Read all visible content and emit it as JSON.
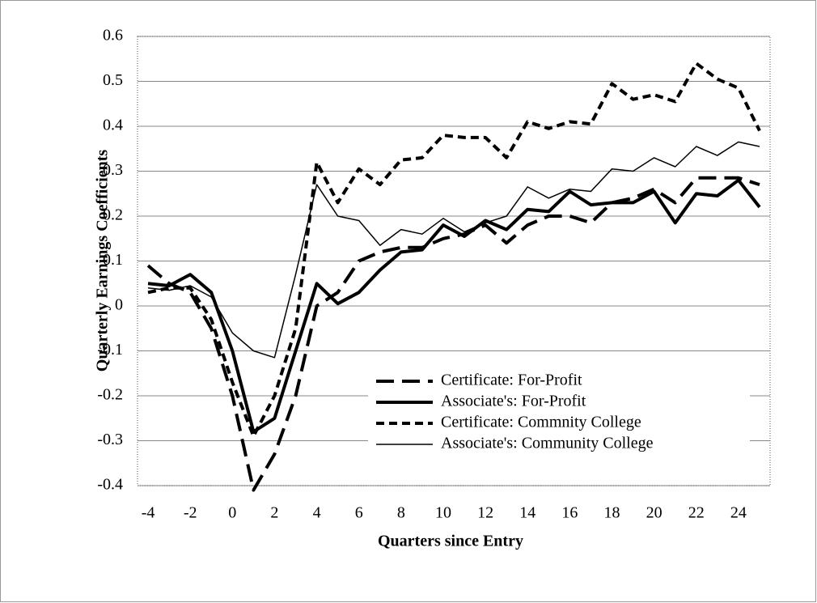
{
  "chart_data": {
    "type": "line",
    "xlabel": "Quarters since Entry",
    "ylabel": "Quarterly Earnings Coefficients",
    "categories": [
      "-4",
      null,
      "-2",
      null,
      "0",
      null,
      "2",
      null,
      "4",
      null,
      "6",
      null,
      "8",
      null,
      "10",
      null,
      "12",
      null,
      "14",
      null,
      "16",
      null,
      "18",
      null,
      "20",
      null,
      "22",
      null,
      "24",
      null
    ],
    "ylim": [
      -0.4,
      0.6
    ],
    "yticks": [
      -0.4,
      -0.3,
      -0.2,
      -0.1,
      0,
      0.1,
      0.2,
      0.3,
      0.4,
      0.5,
      0.6
    ],
    "grid": true,
    "legend": "lower right",
    "series": [
      {
        "name": "Certificate: For-Profit",
        "color": "#000000",
        "width": 4,
        "dash": "22 10",
        "values": [
          0.09,
          0.05,
          0.03,
          -0.05,
          -0.2,
          -0.41,
          -0.33,
          -0.2,
          0.0,
          0.03,
          0.1,
          0.12,
          0.13,
          0.13,
          0.15,
          0.16,
          0.18,
          0.14,
          0.18,
          0.2,
          0.2,
          0.185,
          0.23,
          0.24,
          0.26,
          0.23,
          0.285,
          0.285,
          0.285,
          0.27
        ]
      },
      {
        "name": "Associate's: For-Profit",
        "color": "#000000",
        "width": 4,
        "dash": "none",
        "values": [
          0.05,
          0.045,
          0.07,
          0.03,
          -0.1,
          -0.28,
          -0.25,
          -0.1,
          0.05,
          0.005,
          0.03,
          0.08,
          0.12,
          0.125,
          0.18,
          0.155,
          0.19,
          0.17,
          0.215,
          0.21,
          0.255,
          0.225,
          0.23,
          0.23,
          0.255,
          0.185,
          0.25,
          0.245,
          0.28,
          0.22
        ]
      },
      {
        "name": "Certificate: Commnity College",
        "color": "#000000",
        "width": 4,
        "dash": "10 6",
        "values": [
          0.03,
          0.04,
          0.04,
          -0.03,
          -0.17,
          -0.29,
          -0.2,
          -0.05,
          0.32,
          0.23,
          0.305,
          0.27,
          0.325,
          0.33,
          0.38,
          0.375,
          0.375,
          0.33,
          0.41,
          0.395,
          0.41,
          0.405,
          0.495,
          0.46,
          0.47,
          0.455,
          0.54,
          0.505,
          0.485,
          0.39
        ]
      },
      {
        "name": "Associate's: Community College",
        "color": "#000000",
        "width": 1.5,
        "dash": "none",
        "values": [
          0.04,
          0.035,
          0.045,
          0.02,
          -0.06,
          -0.1,
          -0.115,
          0.07,
          0.27,
          0.2,
          0.19,
          0.135,
          0.17,
          0.16,
          0.195,
          0.165,
          0.185,
          0.2,
          0.265,
          0.24,
          0.26,
          0.255,
          0.305,
          0.3,
          0.33,
          0.31,
          0.355,
          0.335,
          0.365,
          0.355
        ]
      }
    ]
  }
}
